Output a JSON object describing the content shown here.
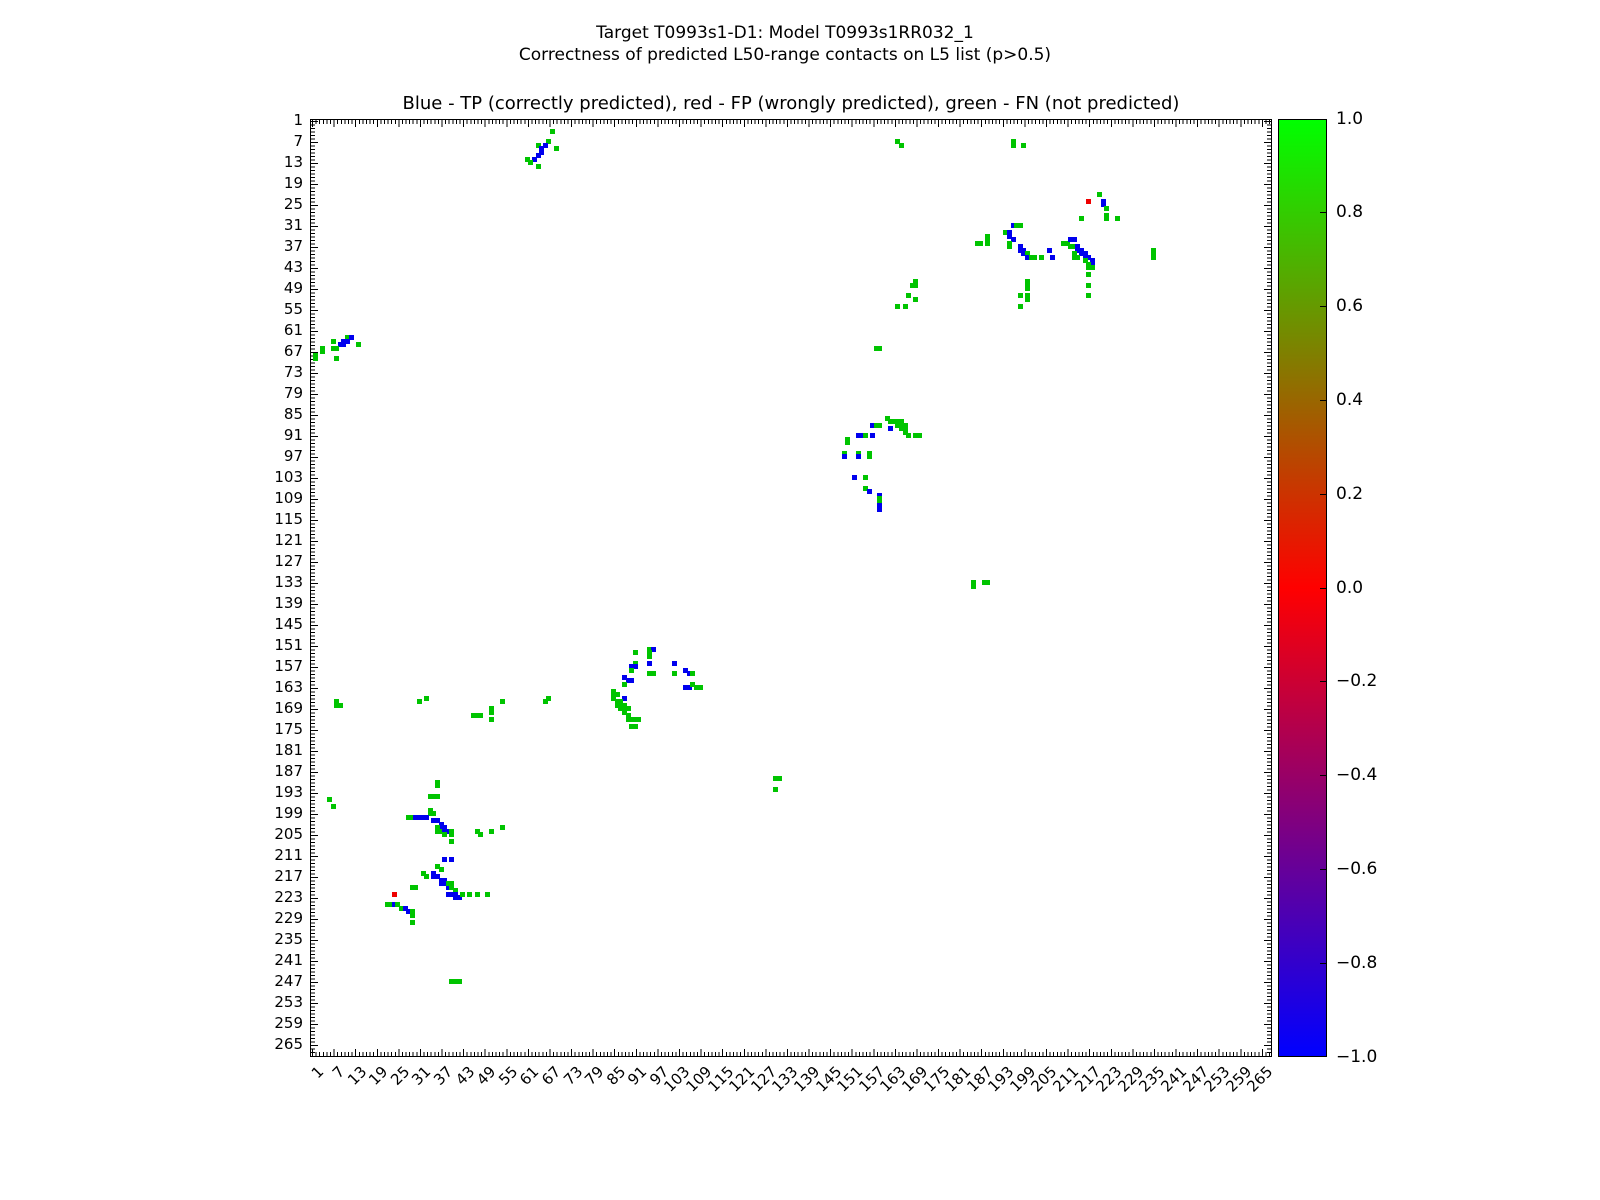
{
  "suptitle": {
    "line1": "Target T0993s1-D1: Model T0993s1RR032_1",
    "line2": "Correctness of predicted L50-range contacts on L5 list (p>0.5)"
  },
  "axes_title": "Blue - TP (correctly predicted), red - FP (wrongly predicted), green - FN (not predicted)",
  "chart_data": {
    "type": "scatter",
    "title": "Blue - TP (correctly predicted), red - FP (wrongly predicted), green - FN (not predicted)",
    "subtitle1": "Target T0993s1-D1: Model T0993s1RR032_1",
    "subtitle2": "Correctness of predicted L50-range contacts on L5 list (p>0.5)",
    "description": "Residue-residue contact map; square markers at (residue j = x, residue i = y), y axis inverted (1 at top).",
    "x_axis": {
      "range_units": [
        1,
        268
      ],
      "ticks": [
        1,
        7,
        13,
        19,
        25,
        31,
        37,
        43,
        49,
        55,
        61,
        67,
        73,
        79,
        85,
        91,
        97,
        103,
        109,
        115,
        121,
        127,
        133,
        139,
        145,
        151,
        157,
        163,
        169,
        175,
        181,
        187,
        193,
        199,
        205,
        211,
        217,
        223,
        229,
        235,
        241,
        247,
        253,
        259,
        265
      ],
      "tick_rotation_deg": 45
    },
    "y_axis": {
      "range_units": [
        1,
        268
      ],
      "inverted": true,
      "ticks": [
        1,
        7,
        13,
        19,
        25,
        31,
        37,
        43,
        49,
        55,
        61,
        67,
        73,
        79,
        85,
        91,
        97,
        103,
        109,
        115,
        121,
        127,
        133,
        139,
        145,
        151,
        157,
        163,
        169,
        175,
        181,
        187,
        193,
        199,
        205,
        211,
        217,
        223,
        229,
        235,
        241,
        247,
        253,
        259,
        265
      ]
    },
    "grid": false,
    "classes": {
      "TP": {
        "label": "correctly predicted",
        "color": "#0000ee",
        "value": -1
      },
      "FP": {
        "label": "wrongly predicted",
        "color": "#ee0000",
        "value": 0
      },
      "FN": {
        "label": "not predicted",
        "color": "#00c400",
        "value": 1
      }
    },
    "colorbar": {
      "range": [
        -1.0,
        1.0
      ],
      "tick_labels": [
        "1.0",
        "0.8",
        "0.6",
        "0.4",
        "0.2",
        "0.0",
        "−0.2",
        "−0.4",
        "−0.6",
        "−0.8",
        "−1.0"
      ],
      "gradient_bottom_to_top": [
        "#0000ff",
        "#ff0000",
        "#00ff00"
      ],
      "position": "right"
    },
    "points": [
      [
        4,
        68,
        "FN"
      ],
      [
        7,
        67,
        "FN"
      ],
      [
        8,
        64,
        "FN"
      ],
      [
        8,
        66,
        "TP"
      ],
      [
        9,
        65,
        "TP"
      ],
      [
        9,
        69,
        "FN"
      ],
      [
        10,
        65,
        "TP"
      ],
      [
        11,
        64,
        "TP"
      ],
      [
        12,
        63,
        "TP"
      ],
      [
        12,
        61,
        "FN"
      ],
      [
        13,
        62,
        "FN"
      ],
      [
        14,
        64,
        "FN"
      ],
      [
        7,
        164,
        "FN"
      ],
      [
        8,
        165,
        "FN"
      ],
      [
        7,
        196,
        "FN"
      ],
      [
        8,
        196,
        "FN"
      ],
      [
        8,
        199,
        "FN"
      ],
      [
        22,
        220,
        "FN"
      ],
      [
        24,
        217,
        "FP"
      ],
      [
        24,
        221,
        "TP"
      ],
      [
        25,
        221,
        "TP"
      ],
      [
        26,
        222,
        "FN"
      ],
      [
        28,
        222,
        "FN"
      ],
      [
        29,
        222,
        "FN"
      ],
      [
        29,
        225,
        "FN"
      ],
      [
        29,
        215,
        "FN"
      ],
      [
        31,
        196,
        "TP"
      ],
      [
        31,
        197,
        "FN"
      ],
      [
        31,
        198,
        "FN"
      ],
      [
        33,
        194,
        "FN"
      ],
      [
        33,
        195,
        "TP"
      ],
      [
        34,
        189,
        "FN"
      ],
      [
        34,
        195,
        "TP"
      ],
      [
        35,
        189,
        "FN"
      ],
      [
        35,
        196,
        "TP"
      ],
      [
        36,
        186,
        "FN"
      ],
      [
        36,
        187,
        "FN"
      ],
      [
        36,
        189,
        "FN"
      ],
      [
        36,
        195,
        "FN"
      ],
      [
        37,
        195,
        "FN"
      ],
      [
        37,
        198,
        "TP"
      ],
      [
        38,
        198,
        "TP"
      ],
      [
        38,
        199,
        "TP"
      ],
      [
        39,
        199,
        "TP"
      ],
      [
        39,
        200,
        "FN"
      ],
      [
        40,
        200,
        "TP"
      ],
      [
        40,
        201,
        "FN"
      ],
      [
        40,
        202,
        "FN"
      ],
      [
        40,
        204,
        "FN"
      ],
      [
        38,
        206,
        "TP"
      ],
      [
        40,
        207,
        "TP"
      ],
      [
        36,
        210,
        "FN"
      ],
      [
        36,
        211,
        "FN"
      ],
      [
        35,
        212,
        "TP"
      ],
      [
        35,
        213,
        "TP"
      ],
      [
        37,
        212,
        "FN"
      ],
      [
        37,
        213,
        "FN"
      ],
      [
        37,
        214,
        "TP"
      ],
      [
        38,
        214,
        "TP"
      ],
      [
        38,
        215,
        "TP"
      ],
      [
        39,
        215,
        "TP"
      ],
      [
        39,
        216,
        "TP"
      ],
      [
        39,
        213,
        "FN"
      ],
      [
        40,
        213,
        "FN"
      ],
      [
        40,
        214,
        "FN"
      ],
      [
        40,
        216,
        "TP"
      ],
      [
        40,
        217,
        "TP"
      ],
      [
        41,
        216,
        "FN"
      ],
      [
        41,
        218,
        "TP"
      ],
      [
        42,
        218,
        "TP"
      ],
      [
        42,
        217,
        "FN"
      ],
      [
        43,
        217,
        "FN"
      ],
      [
        43,
        218,
        "FN"
      ],
      [
        45,
        217,
        "FN"
      ],
      [
        48,
        217,
        "FN"
      ],
      [
        51,
        217,
        "FN"
      ],
      [
        38,
        235,
        "FN"
      ],
      [
        39,
        235,
        "FN"
      ],
      [
        40,
        235,
        "FN"
      ],
      [
        47,
        169,
        "FN"
      ],
      [
        48,
        168,
        "FN"
      ],
      [
        48,
        169,
        "FN"
      ],
      [
        51,
        167,
        "FN"
      ],
      [
        52,
        169,
        "FN"
      ],
      [
        54,
        164,
        "FN"
      ],
      [
        54,
        166,
        "FN"
      ],
      [
        47,
        200,
        "FN"
      ],
      [
        48,
        200,
        "FN"
      ],
      [
        49,
        200,
        "FN"
      ],
      [
        51,
        198,
        "FN"
      ],
      [
        51,
        200,
        "FN"
      ],
      [
        52,
        200,
        "FN"
      ],
      [
        54,
        198,
        "FN"
      ],
      [
        63,
        11,
        "FN"
      ],
      [
        63,
        12,
        "TP"
      ],
      [
        64,
        10,
        "TP"
      ],
      [
        64,
        11,
        "TP"
      ],
      [
        64,
        7,
        "FN"
      ],
      [
        65,
        9,
        "TP"
      ],
      [
        65,
        10,
        "TP"
      ],
      [
        65,
        14,
        "FN"
      ],
      [
        66,
        7,
        "FN"
      ],
      [
        66,
        8,
        "FN"
      ],
      [
        66,
        4,
        "FN"
      ],
      [
        67,
        4,
        "FN"
      ],
      [
        68,
        2,
        "FN"
      ],
      [
        69,
        2,
        "FN"
      ],
      [
        69,
        8,
        "FN"
      ],
      [
        66,
        158,
        "FN"
      ],
      [
        66,
        159,
        "FN"
      ],
      [
        86,
        161,
        "FN"
      ],
      [
        87,
        162,
        "FN"
      ],
      [
        87,
        163,
        "FN"
      ],
      [
        87,
        164,
        "FN"
      ],
      [
        87,
        165,
        "FN"
      ],
      [
        88,
        164,
        "FN"
      ],
      [
        88,
        165,
        "FN"
      ],
      [
        88,
        166,
        "FN"
      ],
      [
        88,
        157,
        "TP"
      ],
      [
        88,
        158,
        "FN"
      ],
      [
        88,
        159,
        "FN"
      ],
      [
        89,
        162,
        "TP"
      ],
      [
        89,
        165,
        "FN"
      ],
      [
        89,
        166,
        "FN"
      ],
      [
        90,
        166,
        "FN"
      ],
      [
        91,
        167,
        "FN"
      ],
      [
        91,
        169,
        "FN"
      ],
      [
        91,
        170,
        "FN"
      ],
      [
        91,
        153,
        "TP"
      ],
      [
        91,
        154,
        "TP"
      ],
      [
        91,
        155,
        "FN"
      ],
      [
        91,
        157,
        "TP"
      ],
      [
        92,
        150,
        "FN"
      ],
      [
        93,
        150,
        "FN"
      ],
      [
        96,
        149,
        "FN"
      ],
      [
        97,
        149,
        "TP"
      ],
      [
        96,
        153,
        "FN"
      ],
      [
        97,
        153,
        "TP"
      ],
      [
        96,
        156,
        "FN"
      ],
      [
        97,
        156,
        "FN"
      ],
      [
        103,
        152,
        "TP"
      ],
      [
        103,
        155,
        "FN"
      ],
      [
        106,
        155,
        "FN"
      ],
      [
        107,
        156,
        "TP"
      ],
      [
        108,
        159,
        "TP"
      ],
      [
        109,
        159,
        "FN"
      ],
      [
        110,
        159,
        "FN"
      ],
      [
        111,
        159,
        "TP"
      ],
      [
        112,
        159,
        "TP"
      ],
      [
        133,
        185,
        "FN"
      ],
      [
        134,
        185,
        "FN"
      ],
      [
        133,
        188,
        "FN"
      ],
      [
        133,
        189,
        "FN"
      ],
      [
        152,
        95,
        "FN"
      ],
      [
        152,
        96,
        "TP"
      ],
      [
        153,
        95,
        "FN"
      ],
      [
        154,
        95,
        "FN"
      ],
      [
        153,
        91,
        "FN"
      ],
      [
        156,
        95,
        "TP"
      ],
      [
        156,
        91,
        "FN"
      ],
      [
        157,
        90,
        "TP"
      ],
      [
        157,
        91,
        "TP"
      ],
      [
        158,
        90,
        "FN"
      ],
      [
        156,
        102,
        "TP"
      ],
      [
        159,
        95,
        "FN"
      ],
      [
        159,
        96,
        "FN"
      ],
      [
        159,
        102,
        "FN"
      ],
      [
        158,
        105,
        "TP"
      ],
      [
        159,
        106,
        "TP"
      ],
      [
        159,
        107,
        "FN"
      ],
      [
        160,
        88,
        "TP"
      ],
      [
        161,
        89,
        "TP"
      ],
      [
        162,
        88,
        "FN"
      ],
      [
        161,
        90,
        "TP"
      ],
      [
        163,
        105,
        "TP"
      ],
      [
        163,
        106,
        "TP"
      ],
      [
        162,
        107,
        "FN"
      ],
      [
        163,
        108,
        "FN"
      ],
      [
        163,
        109,
        "FN"
      ],
      [
        164,
        85,
        "FN"
      ],
      [
        165,
        85,
        "FN"
      ],
      [
        165,
        86,
        "FN"
      ],
      [
        166,
        88,
        "TP"
      ],
      [
        166,
        85,
        "FN"
      ],
      [
        167,
        86,
        "FN"
      ],
      [
        167,
        87,
        "FN"
      ],
      [
        168,
        86,
        "FN"
      ],
      [
        168,
        87,
        "FN"
      ],
      [
        168,
        88,
        "FN"
      ],
      [
        169,
        87,
        "FN"
      ],
      [
        169,
        88,
        "FN"
      ],
      [
        169,
        89,
        "FN"
      ],
      [
        170,
        88,
        "FN"
      ],
      [
        171,
        89,
        "FN"
      ],
      [
        172,
        89,
        "FN"
      ],
      [
        172,
        90,
        "FN"
      ],
      [
        172,
        91,
        "FN"
      ],
      [
        172,
        92,
        "FN"
      ],
      [
        174,
        90,
        "FN"
      ],
      [
        174,
        91,
        "FN"
      ],
      [
        167,
        8,
        "FN"
      ],
      [
        168,
        8,
        "FN"
      ],
      [
        168,
        9,
        "FN"
      ],
      [
        167,
        31,
        "FN"
      ],
      [
        166,
        33,
        "FN"
      ],
      [
        171,
        46,
        "FN"
      ],
      [
        171,
        47,
        "FN"
      ],
      [
        171,
        48,
        "FN"
      ],
      [
        169,
        51,
        "FN"
      ],
      [
        170,
        51,
        "FN"
      ],
      [
        172,
        51,
        "FN"
      ],
      [
        167,
        54,
        "FN"
      ],
      [
        166,
        67,
        "FN"
      ],
      [
        167,
        66,
        "FN"
      ],
      [
        189,
        130,
        "FN"
      ],
      [
        189,
        131,
        "FN"
      ],
      [
        192,
        130,
        "FN"
      ],
      [
        195,
        6,
        "FN"
      ],
      [
        197,
        7,
        "FN"
      ],
      [
        190,
        36,
        "FN"
      ],
      [
        191,
        36,
        "FN"
      ],
      [
        194,
        34,
        "FN"
      ],
      [
        194,
        35,
        "FN"
      ],
      [
        194,
        36,
        "FN"
      ],
      [
        198,
        34,
        "FN"
      ],
      [
        199,
        34,
        "FN"
      ],
      [
        199,
        35,
        "FN"
      ],
      [
        200,
        28,
        "FN"
      ],
      [
        200,
        29,
        "FN"
      ],
      [
        200,
        30,
        "TP"
      ],
      [
        200,
        31,
        "TP"
      ],
      [
        200,
        32,
        "TP"
      ],
      [
        200,
        33,
        "TP"
      ],
      [
        201,
        35,
        "TP"
      ],
      [
        201,
        36,
        "TP"
      ],
      [
        202,
        37,
        "TP"
      ],
      [
        203,
        37,
        "TP"
      ],
      [
        203,
        36,
        "FN"
      ],
      [
        204,
        36,
        "FN"
      ],
      [
        204,
        37,
        "FN"
      ],
      [
        203,
        38,
        "TP"
      ],
      [
        204,
        38,
        "TP"
      ],
      [
        204,
        39,
        "TP"
      ],
      [
        205,
        38,
        "FN"
      ],
      [
        204,
        40,
        "FN"
      ],
      [
        205,
        40,
        "FN"
      ],
      [
        204,
        47,
        "FN"
      ],
      [
        205,
        48,
        "FN"
      ],
      [
        204,
        51,
        "FN"
      ],
      [
        203,
        54,
        "FN"
      ],
      [
        207,
        40,
        "FN"
      ],
      [
        212,
        38,
        "TP"
      ],
      [
        212,
        40,
        "TP"
      ],
      [
        214,
        36,
        "FN"
      ],
      [
        215,
        37,
        "FN"
      ],
      [
        216,
        32,
        "FN"
      ],
      [
        217,
        33,
        "FN"
      ],
      [
        216,
        35,
        "TP"
      ],
      [
        217,
        35,
        "TP"
      ],
      [
        217,
        36,
        "TP"
      ],
      [
        218,
        37,
        "TP"
      ],
      [
        218,
        38,
        "TP"
      ],
      [
        219,
        37,
        "TP"
      ],
      [
        219,
        38,
        "TP"
      ],
      [
        220,
        39,
        "TP"
      ],
      [
        219,
        39,
        "FN"
      ],
      [
        219,
        40,
        "FN"
      ],
      [
        220,
        40,
        "FN"
      ],
      [
        221,
        41,
        "FN"
      ],
      [
        222,
        39,
        "TP"
      ],
      [
        222,
        40,
        "TP"
      ],
      [
        222,
        41,
        "TP"
      ],
      [
        223,
        41,
        "TP"
      ],
      [
        223,
        42,
        "TP"
      ],
      [
        222,
        43,
        "FN"
      ],
      [
        222,
        45,
        "FN"
      ],
      [
        222,
        47,
        "FN"
      ],
      [
        222,
        50,
        "FN"
      ],
      [
        220,
        29,
        "FN"
      ],
      [
        220,
        30,
        "FN"
      ],
      [
        222,
        24,
        "FP"
      ],
      [
        225,
        22,
        "FN"
      ],
      [
        225,
        23,
        "FN"
      ],
      [
        225,
        24,
        "TP"
      ],
      [
        225,
        25,
        "FN"
      ],
      [
        226,
        26,
        "FN"
      ],
      [
        226,
        27,
        "TP"
      ],
      [
        227,
        28,
        "TP"
      ],
      [
        227,
        29,
        "FN"
      ],
      [
        228,
        29,
        "FN"
      ],
      [
        230,
        29,
        "FN"
      ],
      [
        247,
        40,
        "FN"
      ],
      [
        247,
        41,
        "FN"
      ],
      [
        247,
        42,
        "FN"
      ]
    ]
  },
  "layout_note": ""
}
